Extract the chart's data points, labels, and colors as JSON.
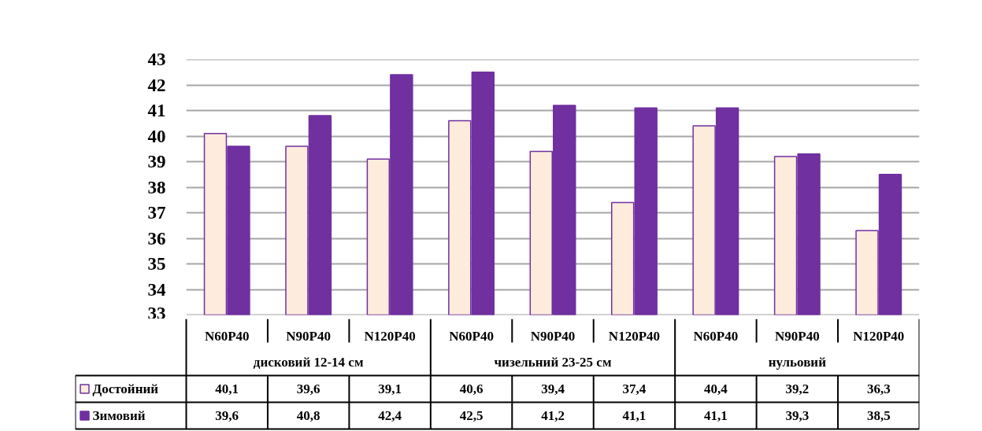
{
  "chart_data": {
    "type": "bar",
    "categories": [
      "N60P40",
      "N90P40",
      "N120P40",
      "N60P40",
      "N90P40",
      "N120P40",
      "N60P40",
      "N90P40",
      "N120P40"
    ],
    "series": [
      {
        "name": "Достойний",
        "color": "#fdebdc",
        "values": [
          40.1,
          39.6,
          39.1,
          40.6,
          39.4,
          37.4,
          40.4,
          39.2,
          36.3
        ],
        "value_labels": [
          "40,1",
          "39,6",
          "39,1",
          "40,6",
          "39,4",
          "37,4",
          "40,4",
          "39,2",
          "36,3"
        ]
      },
      {
        "name": "Зимовий",
        "color": "#7030a0",
        "values": [
          39.6,
          40.8,
          42.4,
          42.5,
          41.2,
          41.1,
          41.1,
          39.3,
          38.5
        ],
        "value_labels": [
          "39,6",
          "40,8",
          "42,4",
          "42,5",
          "41,2",
          "41,1",
          "41,1",
          "39,3",
          "38,5"
        ]
      }
    ],
    "ylim": [
      33,
      43
    ],
    "yticks": [
      33,
      34,
      35,
      36,
      37,
      38,
      39,
      40,
      41,
      42,
      43
    ],
    "grid": "y",
    "legend": "bottom left",
    "annotations": [
      "дисковий 12-14 см",
      "чизельний 23-25 см",
      "нульовий"
    ]
  }
}
